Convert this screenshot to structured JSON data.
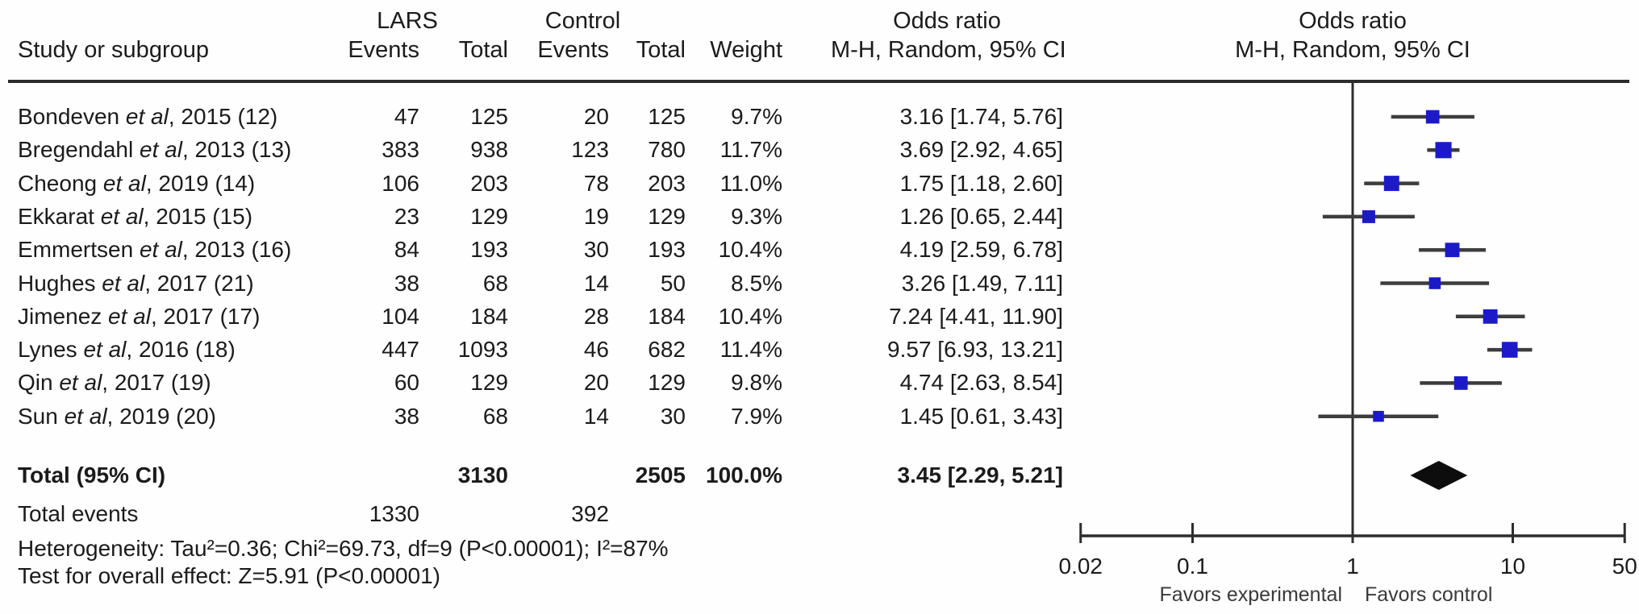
{
  "chart_data": {
    "type": "forest",
    "scale": "log",
    "columns": {
      "study": "Study or subgroup",
      "group1": "LARS",
      "group2": "Control",
      "events1": "Events",
      "total1": "Total",
      "events2": "Events",
      "total2": "Total",
      "weight": "Weight",
      "or_title1": "Odds ratio",
      "or_sub1": "M-H, Random, 95% CI",
      "or_title2": "Odds ratio",
      "or_sub2": "M-H, Random, 95% CI"
    },
    "studies": [
      {
        "prefix": "Bondeven ",
        "italic": "et al",
        "suffix": ", 2015 (12)",
        "events1": "47",
        "total1": "125",
        "events2": "20",
        "total2": "125",
        "weight": "9.7%",
        "ci_text": "3.16 [1.74, 5.76]",
        "or": 3.16,
        "lo": 1.74,
        "hi": 5.76,
        "weight_value": 9.7
      },
      {
        "prefix": "Bregendahl ",
        "italic": "et al",
        "suffix": ", 2013 (13)",
        "events1": "383",
        "total1": "938",
        "events2": "123",
        "total2": "780",
        "weight": "11.7%",
        "ci_text": "3.69 [2.92, 4.65]",
        "or": 3.69,
        "lo": 2.92,
        "hi": 4.65,
        "weight_value": 11.7
      },
      {
        "prefix": "Cheong ",
        "italic": "et al",
        "suffix": ", 2019 (14)",
        "events1": "106",
        "total1": "203",
        "events2": "78",
        "total2": "203",
        "weight": "11.0%",
        "ci_text": "1.75 [1.18, 2.60]",
        "or": 1.75,
        "lo": 1.18,
        "hi": 2.6,
        "weight_value": 11.0
      },
      {
        "prefix": "Ekkarat ",
        "italic": "et al",
        "suffix": ", 2015 (15)",
        "events1": "23",
        "total1": "129",
        "events2": "19",
        "total2": "129",
        "weight": "9.3%",
        "ci_text": "1.26 [0.65, 2.44]",
        "or": 1.26,
        "lo": 0.65,
        "hi": 2.44,
        "weight_value": 9.3
      },
      {
        "prefix": "Emmertsen ",
        "italic": "et al",
        "suffix": ", 2013 (16)",
        "events1": "84",
        "total1": "193",
        "events2": "30",
        "total2": "193",
        "weight": "10.4%",
        "ci_text": "4.19 [2.59, 6.78]",
        "or": 4.19,
        "lo": 2.59,
        "hi": 6.78,
        "weight_value": 10.4
      },
      {
        "prefix": "Hughes ",
        "italic": "et al",
        "suffix": ", 2017 (21)",
        "events1": "38",
        "total1": "68",
        "events2": "14",
        "total2": "50",
        "weight": "8.5%",
        "ci_text": "3.26 [1.49, 7.11]",
        "or": 3.26,
        "lo": 1.49,
        "hi": 7.11,
        "weight_value": 8.5
      },
      {
        "prefix": "Jimenez ",
        "italic": "et al",
        "suffix": ", 2017 (17)",
        "events1": "104",
        "total1": "184",
        "events2": "28",
        "total2": "184",
        "weight": "10.4%",
        "ci_text": "7.24 [4.41, 11.90]",
        "or": 7.24,
        "lo": 4.41,
        "hi": 11.9,
        "weight_value": 10.4
      },
      {
        "prefix": "Lynes ",
        "italic": "et al",
        "suffix": ", 2016 (18)",
        "events1": "447",
        "total1": "1093",
        "events2": "46",
        "total2": "682",
        "weight": "11.4%",
        "ci_text": "9.57 [6.93, 13.21]",
        "or": 9.57,
        "lo": 6.93,
        "hi": 13.21,
        "weight_value": 11.4
      },
      {
        "prefix": "Qin ",
        "italic": "et al",
        "suffix": ", 2017 (19)",
        "events1": "60",
        "total1": "129",
        "events2": "20",
        "total2": "129",
        "weight": "9.8%",
        "ci_text": "4.74 [2.63, 8.54]",
        "or": 4.74,
        "lo": 2.63,
        "hi": 8.54,
        "weight_value": 9.8
      },
      {
        "prefix": "Sun ",
        "italic": "et al",
        "suffix": ", 2019 (20)",
        "events1": "38",
        "total1": "68",
        "events2": "14",
        "total2": "30",
        "weight": "7.9%",
        "ci_text": "1.45 [0.61, 3.43]",
        "or": 1.45,
        "lo": 0.61,
        "hi": 3.43,
        "weight_value": 7.9
      }
    ],
    "total_row": {
      "label": "Total (95% CI)",
      "total1": "3130",
      "total2": "2505",
      "weight": "100.0%",
      "ci_text": "3.45 [2.29, 5.21]",
      "or": 3.45,
      "lo": 2.29,
      "hi": 5.21
    },
    "total_events": {
      "label": "Total events",
      "events1": "1330",
      "events2": "392"
    },
    "heterogeneity": "Heterogeneity: Tau²=0.36; Chi²=69.73, df=9 (P<0.00001); I²=87%",
    "overall_effect": "Test for overall effect: Z=5.91 (P<0.00001)",
    "axis": {
      "xlim": [
        0.02,
        50
      ],
      "tick_values": [
        0.02,
        0.1,
        1,
        10,
        50
      ],
      "tick_labels": [
        "0.02",
        "0.1",
        "1",
        "10",
        "50"
      ],
      "left_label": "Favors experimental",
      "right_label": "Favors control"
    },
    "colors": {
      "marker": "#1c1ac8",
      "ci_line": "#3d3d3d",
      "diamond": "#0d0d0d",
      "axis": "#2d2d2d",
      "text": "#1b1b1b",
      "favors_text": "#3a3a3a"
    }
  }
}
